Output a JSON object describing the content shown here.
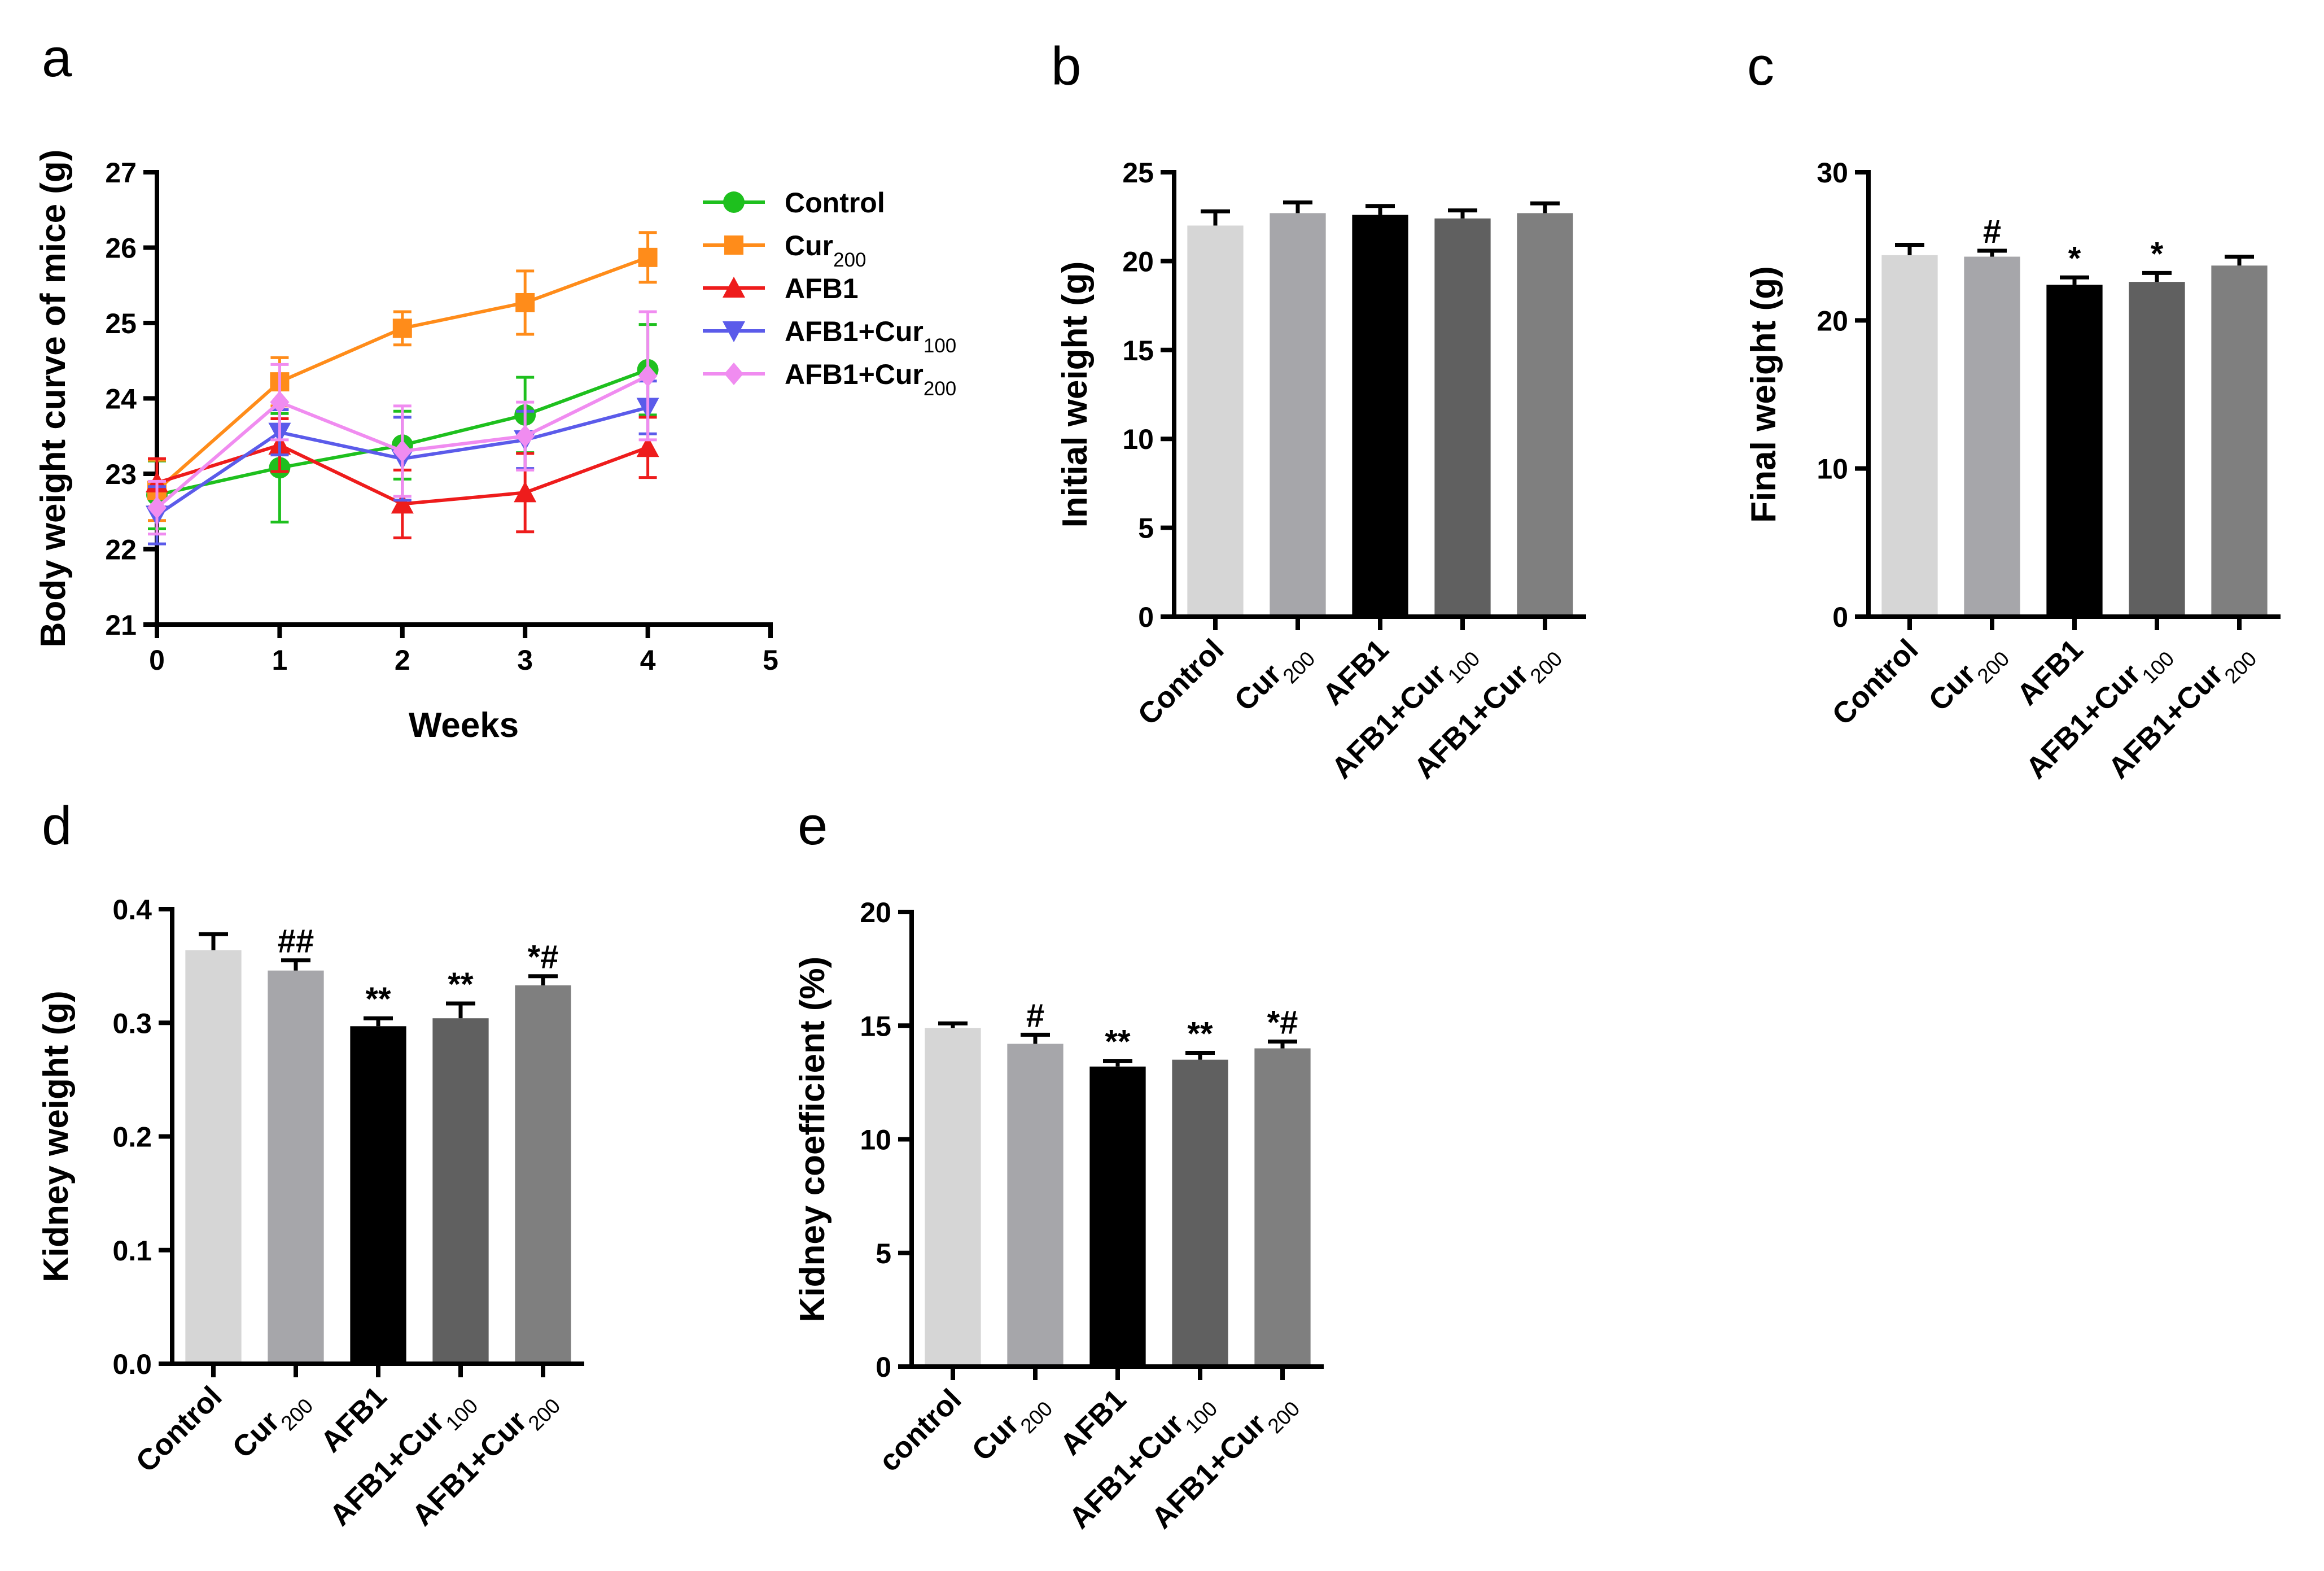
{
  "chart_data": [
    {
      "panel": "a",
      "type": "line",
      "ylabel": "Body weight curve of mice (g)",
      "xlabel": "Weeks",
      "ylim": [
        21,
        27
      ],
      "xlim": [
        0,
        5
      ],
      "yticks": [
        "21",
        "22",
        "23",
        "24",
        "25",
        "26",
        "27"
      ],
      "xticks": [
        "0",
        "1",
        "2",
        "3",
        "4",
        "5"
      ],
      "x": [
        0,
        1,
        2,
        3,
        4
      ],
      "series": [
        {
          "name": "Control",
          "base": "Control",
          "sub": "",
          "color": "#1ec01e",
          "marker": "circle",
          "values": [
            22.72,
            23.08,
            23.38,
            23.78,
            24.38
          ],
          "errors": [
            0.45,
            0.72,
            0.45,
            0.5,
            0.6
          ]
        },
        {
          "name": "Cur200",
          "base": "Cur",
          "sub": "200",
          "color": "#ff8c1a",
          "marker": "square",
          "values": [
            22.78,
            24.22,
            24.93,
            25.27,
            25.87
          ],
          "errors": [
            0.4,
            0.32,
            0.22,
            0.42,
            0.33
          ]
        },
        {
          "name": "AFB1",
          "base": "AFB1",
          "sub": "",
          "color": "#ee1c1c",
          "marker": "triangle-up",
          "values": [
            22.88,
            23.38,
            22.6,
            22.75,
            23.35
          ],
          "errors": [
            0.32,
            0.35,
            0.45,
            0.52,
            0.4
          ]
        },
        {
          "name": "AFB1+Cur100",
          "base": "AFB1+Cur",
          "sub": "100",
          "color": "#5b5bea",
          "marker": "triangle-down",
          "values": [
            22.45,
            23.55,
            23.2,
            23.45,
            23.88
          ],
          "errors": [
            0.38,
            0.3,
            0.55,
            0.38,
            0.35
          ]
        },
        {
          "name": "AFB1+Cur200",
          "base": "AFB1+Cur",
          "sub": "200",
          "color": "#f08cf0",
          "marker": "diamond",
          "values": [
            22.55,
            23.95,
            23.3,
            23.5,
            24.3
          ],
          "errors": [
            0.35,
            0.5,
            0.6,
            0.45,
            0.85
          ]
        }
      ]
    },
    {
      "panel": "b",
      "type": "bar",
      "ylabel": "Initial weight (g)",
      "ylim": [
        0,
        25
      ],
      "yticks": [
        "0",
        "5",
        "10",
        "15",
        "20",
        "25"
      ],
      "categories": [
        {
          "base": "Control",
          "sub": ""
        },
        {
          "base": "Cur",
          "sub": "200"
        },
        {
          "base": "AFB1",
          "sub": ""
        },
        {
          "base": "AFB1+Cur",
          "sub": "100"
        },
        {
          "base": "AFB1+Cur",
          "sub": "200"
        }
      ],
      "values": [
        22.0,
        22.7,
        22.6,
        22.4,
        22.7
      ],
      "errors": [
        0.8,
        0.6,
        0.5,
        0.45,
        0.55
      ],
      "significance": [
        "",
        "",
        "",
        "",
        ""
      ],
      "colors": [
        "#d6d6d6",
        "#a6a6aa",
        "#000000",
        "#606060",
        "#7f7f7f"
      ]
    },
    {
      "panel": "c",
      "type": "bar",
      "ylabel": "Final weight (g)",
      "ylim": [
        0,
        30
      ],
      "yticks": [
        "0",
        "10",
        "20",
        "30"
      ],
      "categories": [
        {
          "base": "Control",
          "sub": ""
        },
        {
          "base": "Cur",
          "sub": "200"
        },
        {
          "base": "AFB1",
          "sub": ""
        },
        {
          "base": "AFB1+Cur",
          "sub": "100"
        },
        {
          "base": "AFB1+Cur",
          "sub": "200"
        }
      ],
      "values": [
        24.4,
        24.3,
        22.4,
        22.6,
        23.7
      ],
      "errors": [
        0.7,
        0.4,
        0.5,
        0.6,
        0.6
      ],
      "significance": [
        "",
        "#",
        "*",
        "*",
        ""
      ],
      "colors": [
        "#d6d6d6",
        "#a6a6aa",
        "#000000",
        "#606060",
        "#7f7f7f"
      ]
    },
    {
      "panel": "d",
      "type": "bar",
      "ylabel": "Kidney weight (g)",
      "ylim": [
        0,
        0.4
      ],
      "yticks": [
        "0.0",
        "0.1",
        "0.2",
        "0.3",
        "0.4"
      ],
      "categories": [
        {
          "base": "Control",
          "sub": ""
        },
        {
          "base": "Cur",
          "sub": "200"
        },
        {
          "base": "AFB1",
          "sub": ""
        },
        {
          "base": "AFB1+Cur",
          "sub": "100"
        },
        {
          "base": "AFB1+Cur",
          "sub": "200"
        }
      ],
      "values": [
        0.364,
        0.346,
        0.297,
        0.304,
        0.333
      ],
      "errors": [
        0.014,
        0.009,
        0.007,
        0.013,
        0.008
      ],
      "significance": [
        "",
        "##",
        "**",
        "**",
        "*#"
      ],
      "colors": [
        "#d6d6d6",
        "#a6a6aa",
        "#000000",
        "#606060",
        "#7f7f7f"
      ]
    },
    {
      "panel": "e",
      "type": "bar",
      "ylabel": "Kidney coefficient (%)",
      "ylim": [
        0,
        20
      ],
      "yticks": [
        "0",
        "5",
        "10",
        "15",
        "20"
      ],
      "categories": [
        {
          "base": "control",
          "sub": ""
        },
        {
          "base": "Cur",
          "sub": "200"
        },
        {
          "base": "AFB1",
          "sub": ""
        },
        {
          "base": "AFB1+Cur",
          "sub": "100"
        },
        {
          "base": "AFB1+Cur",
          "sub": "200"
        }
      ],
      "values": [
        14.9,
        14.2,
        13.2,
        13.5,
        14.0
      ],
      "errors": [
        0.2,
        0.4,
        0.25,
        0.3,
        0.3
      ],
      "significance": [
        "",
        "#",
        "**",
        "**",
        "*#"
      ],
      "colors": [
        "#d6d6d6",
        "#a6a6aa",
        "#000000",
        "#606060",
        "#7f7f7f"
      ]
    }
  ]
}
